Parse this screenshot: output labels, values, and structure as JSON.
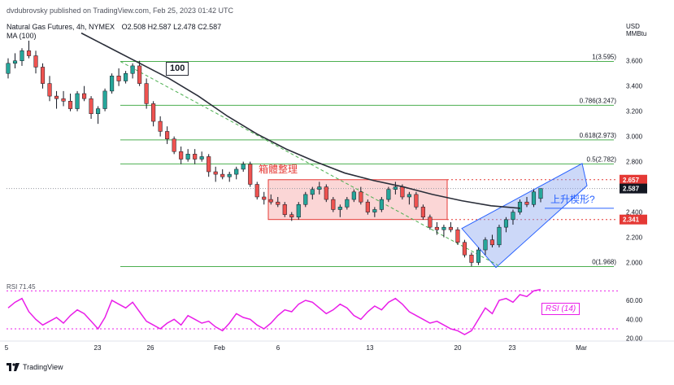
{
  "header": {
    "publisher": "dvdubrovsky published on TradingView.com, Feb 25, 2023 01:42 UTC",
    "symbol_line": "Natural Gas Futures, 4h, NYMEX",
    "ohlc": "O2.508 H2.587 L2.478 C2.587",
    "ma_line": "MA (100)"
  },
  "currency": {
    "top": "USD",
    "unit": "MMBtu"
  },
  "annotations": {
    "ma_label": "100",
    "range_label": "箱體整理",
    "wedge_label": "上升楔形?",
    "rsi_title": "RSI (14)",
    "rsi_pane_label": "RSI 71.45"
  },
  "footer": {
    "logo_text": "TradingView"
  },
  "colors": {
    "bull": "#26a69a",
    "bear": "#ef5350",
    "ma": "#2a2e39",
    "fib": "#4caf50",
    "range_fill": "#f8b4b4",
    "range_border": "#e53935",
    "wedge_fill": "#8fa8f0",
    "wedge_border": "#2962ff",
    "rsi": "#e91ee8"
  },
  "chart_data": [
    {
      "type": "candlestick",
      "title": "Natural Gas Futures, 4h, NYMEX",
      "ylim": [
        1.9,
        3.85
      ],
      "y_ticks": [
        2.0,
        2.2,
        2.4,
        2.6,
        2.8,
        3.0,
        3.2,
        3.4,
        3.6
      ],
      "y_tick_labels": [
        "2.000",
        "2.200",
        "2.400",
        "2.600",
        "2.800",
        "3.000",
        "3.200",
        "3.400",
        "3.600"
      ],
      "x_tick_labels": [
        "5",
        "23",
        "26",
        "Feb",
        "6",
        "13",
        "20",
        "23",
        "Mar"
      ],
      "candles": [
        [
          3.5,
          3.62,
          3.46,
          3.58
        ],
        [
          3.58,
          3.66,
          3.54,
          3.6
        ],
        [
          3.6,
          3.7,
          3.56,
          3.68
        ],
        [
          3.68,
          3.76,
          3.62,
          3.64
        ],
        [
          3.64,
          3.68,
          3.5,
          3.55
        ],
        [
          3.55,
          3.58,
          3.38,
          3.42
        ],
        [
          3.42,
          3.48,
          3.28,
          3.32
        ],
        [
          3.32,
          3.36,
          3.22,
          3.3
        ],
        [
          3.3,
          3.36,
          3.24,
          3.28
        ],
        [
          3.28,
          3.34,
          3.2,
          3.22
        ],
        [
          3.22,
          3.36,
          3.2,
          3.34
        ],
        [
          3.34,
          3.4,
          3.28,
          3.3
        ],
        [
          3.3,
          3.32,
          3.14,
          3.18
        ],
        [
          3.18,
          3.24,
          3.1,
          3.22
        ],
        [
          3.22,
          3.38,
          3.2,
          3.36
        ],
        [
          3.36,
          3.5,
          3.34,
          3.48
        ],
        [
          3.48,
          3.54,
          3.4,
          3.44
        ],
        [
          3.44,
          3.52,
          3.42,
          3.5
        ],
        [
          3.5,
          3.58,
          3.46,
          3.56
        ],
        [
          3.56,
          3.6,
          3.4,
          3.42
        ],
        [
          3.42,
          3.46,
          3.22,
          3.26
        ],
        [
          3.26,
          3.28,
          3.08,
          3.12
        ],
        [
          3.12,
          3.16,
          3.0,
          3.04
        ],
        [
          3.04,
          3.08,
          2.94,
          2.98
        ],
        [
          2.98,
          3.0,
          2.86,
          2.88
        ],
        [
          2.88,
          2.92,
          2.78,
          2.82
        ],
        [
          2.82,
          2.9,
          2.8,
          2.86
        ],
        [
          2.86,
          2.9,
          2.78,
          2.82
        ],
        [
          2.82,
          2.88,
          2.8,
          2.84
        ],
        [
          2.84,
          2.86,
          2.68,
          2.72
        ],
        [
          2.72,
          2.76,
          2.64,
          2.7
        ],
        [
          2.7,
          2.74,
          2.66,
          2.68
        ],
        [
          2.68,
          2.72,
          2.64,
          2.7
        ],
        [
          2.7,
          2.76,
          2.66,
          2.74
        ],
        [
          2.74,
          2.8,
          2.72,
          2.78
        ],
        [
          2.78,
          2.8,
          2.6,
          2.62
        ],
        [
          2.62,
          2.64,
          2.5,
          2.52
        ],
        [
          2.52,
          2.56,
          2.46,
          2.5
        ],
        [
          2.5,
          2.54,
          2.46,
          2.48
        ],
        [
          2.48,
          2.52,
          2.44,
          2.46
        ],
        [
          2.46,
          2.48,
          2.36,
          2.38
        ],
        [
          2.38,
          2.4,
          2.33,
          2.36
        ],
        [
          2.36,
          2.48,
          2.34,
          2.46
        ],
        [
          2.46,
          2.56,
          2.44,
          2.54
        ],
        [
          2.54,
          2.6,
          2.5,
          2.58
        ],
        [
          2.58,
          2.64,
          2.54,
          2.6
        ],
        [
          2.6,
          2.62,
          2.48,
          2.5
        ],
        [
          2.5,
          2.52,
          2.4,
          2.42
        ],
        [
          2.42,
          2.46,
          2.36,
          2.44
        ],
        [
          2.44,
          2.52,
          2.42,
          2.5
        ],
        [
          2.5,
          2.58,
          2.48,
          2.56
        ],
        [
          2.56,
          2.6,
          2.46,
          2.48
        ],
        [
          2.48,
          2.5,
          2.38,
          2.4
        ],
        [
          2.4,
          2.44,
          2.36,
          2.42
        ],
        [
          2.42,
          2.52,
          2.4,
          2.5
        ],
        [
          2.5,
          2.6,
          2.48,
          2.58
        ],
        [
          2.58,
          2.64,
          2.54,
          2.6
        ],
        [
          2.6,
          2.62,
          2.5,
          2.52
        ],
        [
          2.52,
          2.56,
          2.46,
          2.54
        ],
        [
          2.54,
          2.56,
          2.42,
          2.44
        ],
        [
          2.44,
          2.46,
          2.34,
          2.36
        ],
        [
          2.36,
          2.38,
          2.26,
          2.28
        ],
        [
          2.28,
          2.32,
          2.22,
          2.26
        ],
        [
          2.26,
          2.3,
          2.2,
          2.28
        ],
        [
          2.28,
          2.32,
          2.24,
          2.26
        ],
        [
          2.26,
          2.28,
          2.14,
          2.16
        ],
        [
          2.16,
          2.18,
          2.04,
          2.06
        ],
        [
          2.06,
          2.08,
          1.97,
          2.0
        ],
        [
          2.0,
          2.12,
          1.98,
          2.1
        ],
        [
          2.1,
          2.2,
          2.06,
          2.18
        ],
        [
          2.18,
          2.22,
          2.12,
          2.14
        ],
        [
          2.14,
          2.3,
          2.12,
          2.28
        ],
        [
          2.28,
          2.36,
          2.24,
          2.34
        ],
        [
          2.34,
          2.42,
          2.3,
          2.4
        ],
        [
          2.4,
          2.5,
          2.38,
          2.48
        ],
        [
          2.48,
          2.52,
          2.44,
          2.46
        ],
        [
          2.46,
          2.58,
          2.44,
          2.56
        ],
        [
          2.508,
          2.587,
          2.478,
          2.587
        ]
      ],
      "ma_100": [
        3.82,
        3.7,
        3.58,
        3.46,
        3.32,
        3.16,
        3.02,
        2.9,
        2.8,
        2.71,
        2.65,
        2.6,
        2.54,
        2.49,
        2.45,
        2.43
      ],
      "fib_levels": [
        {
          "label": "1(3.595)",
          "value": 3.595
        },
        {
          "label": "0.786(3.247)",
          "value": 3.247
        },
        {
          "label": "0.618(2.973)",
          "value": 2.973
        },
        {
          "label": "0.5(2.782)",
          "value": 2.782
        },
        {
          "label": "0(1.968)",
          "value": 1.968
        }
      ],
      "range_box": {
        "top": 2.657,
        "bottom": 2.341
      },
      "price_tags": [
        {
          "label": "2.657",
          "value": 2.657,
          "color": "#e53935"
        },
        {
          "label": "2.587",
          "value": 2.587,
          "color": "#131722"
        },
        {
          "label": "2.341",
          "value": 2.341,
          "color": "#e53935"
        }
      ]
    },
    {
      "type": "line",
      "title": "RSI (14)",
      "ylim": [
        18,
        78
      ],
      "y_ticks": [
        20,
        40,
        60
      ],
      "y_tick_labels": [
        "20.00",
        "40.00",
        "60.00"
      ],
      "bands": [
        30,
        70
      ],
      "series": [
        {
          "name": "RSI (14)",
          "values": [
            52,
            58,
            62,
            48,
            40,
            34,
            38,
            42,
            36,
            44,
            50,
            46,
            38,
            30,
            42,
            60,
            56,
            52,
            58,
            48,
            38,
            34,
            30,
            36,
            40,
            34,
            44,
            40,
            36,
            38,
            32,
            28,
            36,
            46,
            42,
            40,
            34,
            30,
            36,
            44,
            50,
            48,
            56,
            60,
            58,
            52,
            46,
            50,
            56,
            52,
            44,
            40,
            48,
            54,
            50,
            58,
            62,
            56,
            48,
            44,
            40,
            36,
            38,
            34,
            30,
            28,
            24,
            28,
            40,
            52,
            46,
            60,
            62,
            58,
            66,
            64,
            70,
            71.45
          ]
        }
      ]
    }
  ]
}
